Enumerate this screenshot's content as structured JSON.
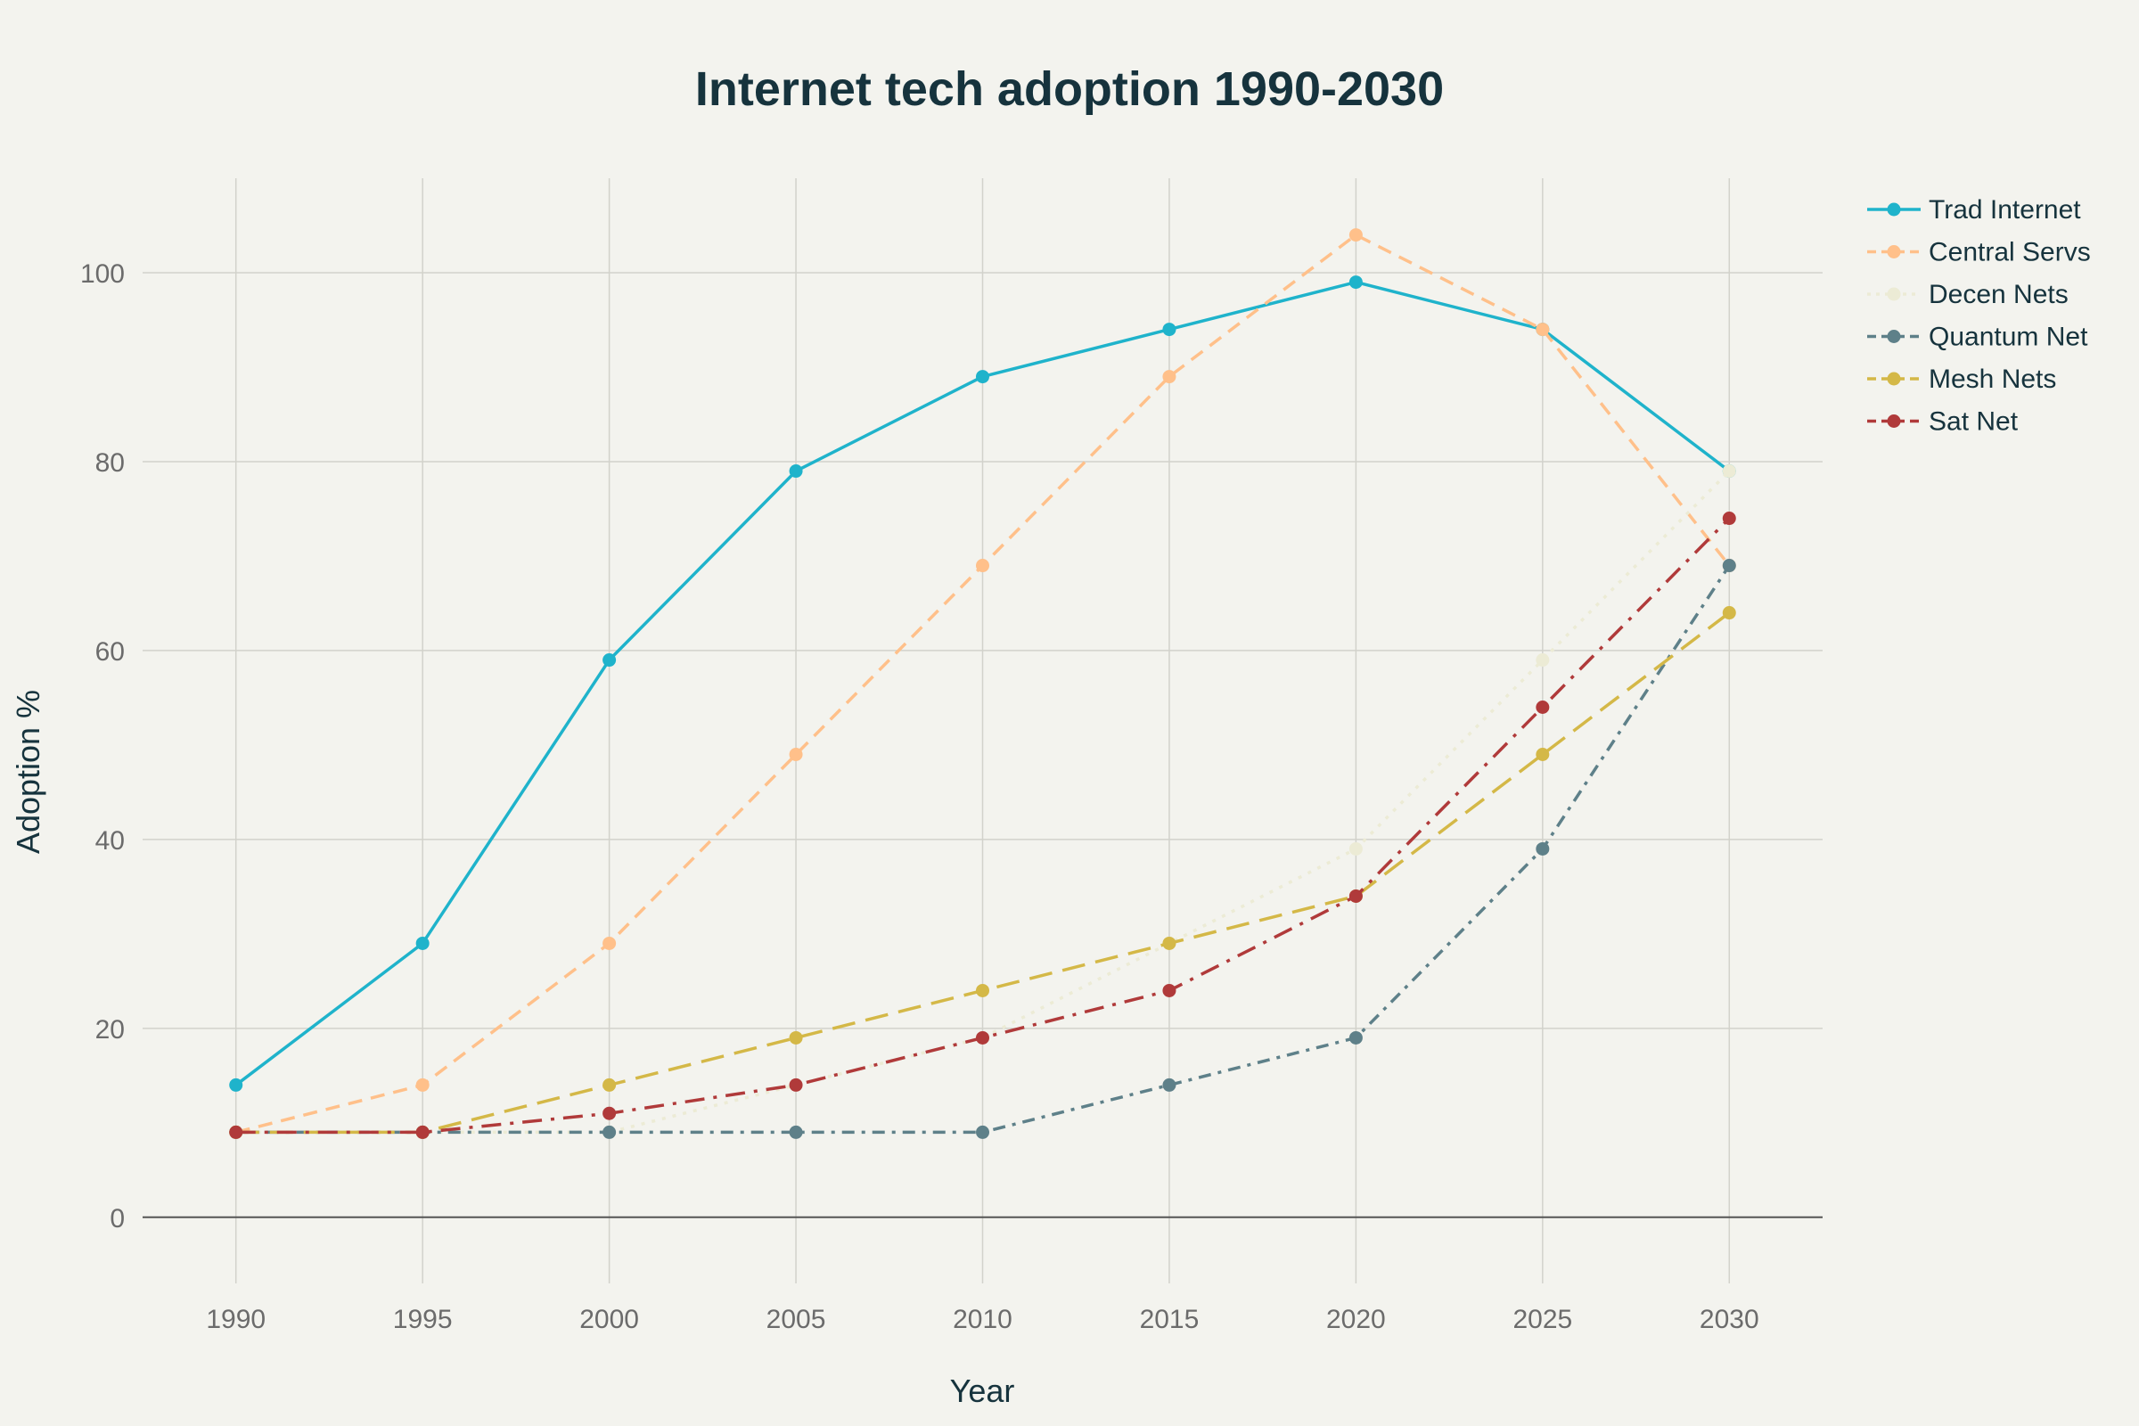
{
  "chart_data": {
    "type": "line",
    "title": "Internet tech adoption 1990-2030",
    "xlabel": "Year",
    "ylabel": "Adoption %",
    "x": [
      1990,
      1995,
      2000,
      2005,
      2010,
      2015,
      2020,
      2025,
      2030
    ],
    "xlim": [
      1987.5,
      2032.5
    ],
    "ylim": [
      -7,
      110
    ],
    "yticks": [
      0,
      20,
      40,
      60,
      80,
      100
    ],
    "grid": true,
    "legend_position": "top-right",
    "series": [
      {
        "name": "Trad Internet",
        "color": "#1fb3cb",
        "dash": "solid",
        "values": [
          14,
          29,
          59,
          79,
          89,
          94,
          99,
          94,
          79
        ]
      },
      {
        "name": "Central Servs",
        "color": "#ffc08a",
        "dash": "dash",
        "values": [
          9,
          14,
          29,
          49,
          69,
          89,
          104,
          94,
          69
        ]
      },
      {
        "name": "Decen Nets",
        "color": "#ecebd5",
        "dash": "dot",
        "values": [
          9,
          9,
          9,
          14,
          19,
          29,
          39,
          59,
          79
        ]
      },
      {
        "name": "Quantum Net",
        "color": "#5e8089",
        "dash": "dashdot",
        "values": [
          9,
          9,
          9,
          9,
          9,
          14,
          19,
          39,
          69
        ]
      },
      {
        "name": "Mesh Nets",
        "color": "#d4b847",
        "dash": "longdash",
        "values": [
          9,
          9,
          14,
          19,
          24,
          29,
          34,
          49,
          64
        ]
      },
      {
        "name": "Sat Net",
        "color": "#b03a3a",
        "dash": "longdashdot",
        "values": [
          9,
          9,
          11,
          14,
          19,
          24,
          34,
          54,
          74
        ]
      }
    ]
  }
}
